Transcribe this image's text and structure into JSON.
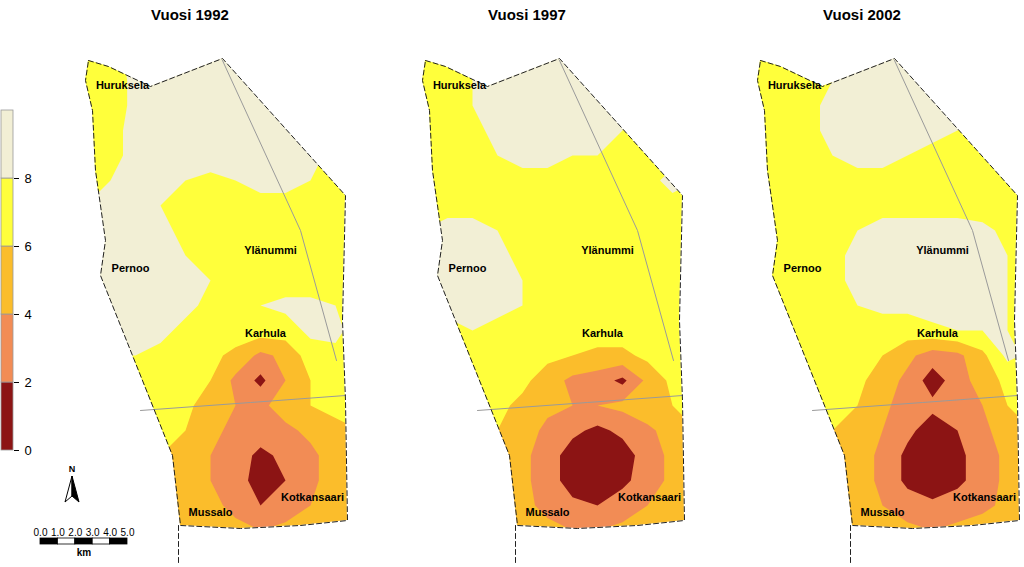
{
  "chart_data": {
    "type": "contour_map",
    "panels": [
      {
        "title": "Vuosi 1992",
        "cells": [
          [
            7,
            7,
            9,
            9,
            9,
            9,
            9,
            9,
            9,
            9,
            9,
            9
          ],
          [
            7,
            7,
            8.5,
            9,
            9,
            9,
            9,
            9,
            9,
            9,
            9,
            9
          ],
          [
            7,
            7,
            8.5,
            9,
            9,
            9,
            9,
            9,
            9,
            9,
            8.5,
            8
          ],
          [
            7,
            7.5,
            8.5,
            9,
            9,
            9,
            9,
            9,
            9,
            9,
            8.5,
            8
          ],
          [
            7,
            7.5,
            8.5,
            9,
            9,
            9,
            9,
            9,
            9,
            8.5,
            7.5,
            7
          ],
          [
            7.5,
            8,
            8.5,
            8.5,
            8,
            7.5,
            8,
            8.5,
            8.5,
            8,
            7,
            7
          ],
          [
            8,
            8.5,
            8.5,
            8,
            7,
            7,
            7,
            7.5,
            7.5,
            7,
            7,
            7
          ],
          [
            8.5,
            9,
            9,
            8.5,
            7.5,
            7,
            7,
            7,
            7,
            7,
            7,
            7
          ],
          [
            9,
            9,
            9,
            8.5,
            8,
            7.5,
            7,
            7,
            7,
            7,
            7,
            7
          ],
          [
            9,
            9,
            9,
            9,
            8.5,
            8,
            7.5,
            7,
            7,
            7,
            7,
            7
          ],
          [
            9,
            9,
            9,
            9,
            8.5,
            7.5,
            7.5,
            8,
            8.5,
            8.5,
            8,
            7
          ],
          [
            9,
            9,
            9,
            8.5,
            7.5,
            7,
            7,
            7,
            7,
            8.5,
            8.5,
            7
          ],
          [
            8,
            8,
            8,
            7.5,
            7,
            6.5,
            5.5,
            3.5,
            4.5,
            7,
            7.5,
            7
          ],
          [
            7,
            7,
            7,
            7,
            7,
            6,
            3.5,
            1.5,
            4,
            6,
            7,
            7
          ],
          [
            7,
            7,
            7,
            7,
            6.5,
            5,
            4,
            3.5,
            5,
            6,
            6.5,
            6.5
          ],
          [
            7,
            7,
            7,
            6.5,
            6,
            4.5,
            3.5,
            3,
            3.5,
            4.5,
            5.5,
            6
          ],
          [
            7,
            7,
            7,
            6,
            5,
            4,
            3,
            1.5,
            2.5,
            3.5,
            5,
            5.5
          ],
          [
            7,
            7,
            7,
            5.5,
            5,
            4,
            3,
            1,
            2,
            3.5,
            5,
            5.5
          ],
          [
            7,
            7,
            7,
            5.5,
            5,
            4.5,
            3.5,
            2,
            3,
            4,
            5,
            5.5
          ],
          [
            7,
            7,
            7,
            6,
            5.5,
            5,
            4.5,
            4,
            4.5,
            5,
            5.5,
            6
          ]
        ]
      },
      {
        "title": "Vuosi 1997",
        "cells": [
          [
            7,
            7,
            9,
            9,
            9,
            9,
            9,
            9,
            9,
            9,
            9,
            9
          ],
          [
            7,
            7,
            8,
            8.5,
            9,
            9,
            9,
            9,
            8.5,
            8,
            8,
            8
          ],
          [
            7,
            7,
            8,
            8.5,
            9,
            9,
            9,
            9,
            8.5,
            7.5,
            7.5,
            7.5
          ],
          [
            7,
            7,
            7.5,
            8.5,
            9,
            9,
            9,
            8.5,
            8,
            7.5,
            7,
            7
          ],
          [
            7,
            7,
            7.5,
            8,
            8.5,
            8.5,
            8,
            8,
            7.5,
            7.5,
            7.5,
            7.5
          ],
          [
            7,
            7,
            7.5,
            7.5,
            7.5,
            7.5,
            7.5,
            7.5,
            7.5,
            7.5,
            8.5,
            8
          ],
          [
            7.5,
            7.5,
            7.5,
            7,
            7,
            7,
            7,
            7,
            7,
            7,
            7.5,
            7.5
          ],
          [
            8,
            8.5,
            8.5,
            8,
            7,
            7,
            7,
            7,
            7,
            7,
            7,
            7
          ],
          [
            8.5,
            9,
            9,
            8.5,
            7.5,
            7,
            7,
            7,
            7,
            7,
            7,
            7
          ],
          [
            8.5,
            9,
            9,
            9,
            8,
            7,
            7,
            7,
            7,
            7,
            7,
            7
          ],
          [
            8,
            8.5,
            9,
            8.5,
            8,
            7,
            7,
            7,
            7,
            7,
            7,
            7
          ],
          [
            7.5,
            7.5,
            8,
            7.5,
            7,
            7,
            7,
            7,
            7,
            7,
            7,
            7
          ],
          [
            7,
            7,
            7,
            7,
            7,
            6.5,
            6,
            5.5,
            5.5,
            6.5,
            7,
            7
          ],
          [
            7,
            7,
            7,
            7,
            6.5,
            5,
            3.5,
            3,
            1.5,
            4.5,
            6.5,
            7
          ],
          [
            7,
            7,
            7,
            6.5,
            5.5,
            4.5,
            4,
            4,
            4.5,
            5.5,
            6,
            6.5
          ],
          [
            7,
            7,
            7,
            6,
            5,
            3.5,
            2.5,
            1.5,
            2.5,
            3.5,
            5,
            6
          ],
          [
            7,
            7,
            7,
            5.5,
            4.5,
            3,
            1,
            0.5,
            1,
            3,
            4.5,
            5.5
          ],
          [
            7,
            7,
            6.5,
            5,
            4.5,
            3,
            1,
            0.5,
            1.5,
            3,
            4.5,
            5.5
          ],
          [
            7,
            7,
            6.5,
            5,
            4.5,
            3.5,
            2.5,
            2,
            3,
            4,
            5,
            5.5
          ],
          [
            7,
            7,
            7,
            5.5,
            5,
            4.5,
            4,
            4,
            4.5,
            5,
            5.5,
            6
          ]
        ]
      },
      {
        "title": "Vuosi 2002",
        "cells": [
          [
            7,
            7,
            9,
            9,
            9,
            9,
            9,
            9,
            9,
            9,
            9,
            9
          ],
          [
            7,
            7,
            7.5,
            8,
            8.5,
            9,
            9,
            8.5,
            8.5,
            8,
            8,
            8
          ],
          [
            7,
            7,
            7.5,
            8.5,
            9,
            9,
            9,
            9,
            8.5,
            8,
            7.5,
            7.5
          ],
          [
            7,
            7,
            7.5,
            8.5,
            9,
            9,
            9,
            8.5,
            8,
            7.5,
            7,
            7
          ],
          [
            7,
            7,
            7.5,
            8,
            8.5,
            8.5,
            8,
            7.5,
            7.5,
            7,
            7,
            7
          ],
          [
            7,
            7,
            7,
            7,
            7.5,
            7.5,
            7,
            7,
            7,
            7,
            7,
            7
          ],
          [
            7,
            7,
            7,
            7,
            7,
            7.5,
            7.5,
            7.5,
            7.5,
            7,
            7,
            7
          ],
          [
            7,
            7,
            7,
            7,
            8,
            8.5,
            8.5,
            8.5,
            8.5,
            8.5,
            7.5,
            7.5
          ],
          [
            7,
            7,
            7,
            7.5,
            8.5,
            9,
            9,
            9,
            9,
            9,
            8,
            7.5
          ],
          [
            7,
            7,
            7,
            7.5,
            8.5,
            9,
            9,
            9,
            9,
            9,
            8,
            7.5
          ],
          [
            7,
            7,
            7,
            7.5,
            8,
            8.5,
            8.5,
            9,
            9,
            9,
            8,
            7.5
          ],
          [
            7,
            7,
            7,
            7,
            7,
            7,
            7,
            7.5,
            8,
            8,
            8,
            7
          ],
          [
            7,
            7,
            7,
            7,
            7,
            6,
            4.5,
            3,
            3.5,
            5.5,
            8.5,
            7.5
          ],
          [
            7,
            7,
            7,
            7,
            6.5,
            5,
            3.5,
            1,
            3,
            5,
            6.5,
            7
          ],
          [
            7,
            7,
            7,
            6.5,
            6,
            4.5,
            3,
            2.5,
            3,
            4,
            6,
            6.5
          ],
          [
            7,
            7,
            6.5,
            6,
            5.5,
            4,
            2.5,
            1,
            2,
            3.5,
            5,
            6
          ],
          [
            6,
            4.5,
            6,
            5.5,
            5,
            3.5,
            1.5,
            0.5,
            1.5,
            3,
            4.5,
            5.5
          ],
          [
            7,
            6,
            6,
            5.5,
            5,
            3.5,
            1.5,
            0.5,
            1.5,
            3,
            4.5,
            5.5
          ],
          [
            7,
            6.5,
            6.5,
            6,
            5.5,
            4,
            3,
            2.5,
            3,
            3.5,
            4.5,
            5.5
          ],
          [
            7,
            7,
            7,
            6.5,
            6,
            5,
            4.5,
            4,
            4.5,
            5,
            5.5,
            6
          ]
        ]
      }
    ],
    "places": [
      "Huruksela",
      "Ylänummi",
      "Pernoo",
      "Karhula",
      "Kotkansaari",
      "Mussalo"
    ],
    "colorbar": {
      "range": [
        0,
        10
      ],
      "ticks": [
        0,
        2,
        4,
        6,
        8
      ],
      "colors": [
        "#8c1414",
        "#f28c55",
        "#fbbd2b",
        "#ffff3b",
        "#f2efd5"
      ]
    },
    "north_arrow": "N",
    "scale_bar": {
      "range": [
        0,
        5
      ],
      "ticks": [
        0,
        1,
        2,
        3,
        4,
        5
      ],
      "unit": "km"
    }
  }
}
